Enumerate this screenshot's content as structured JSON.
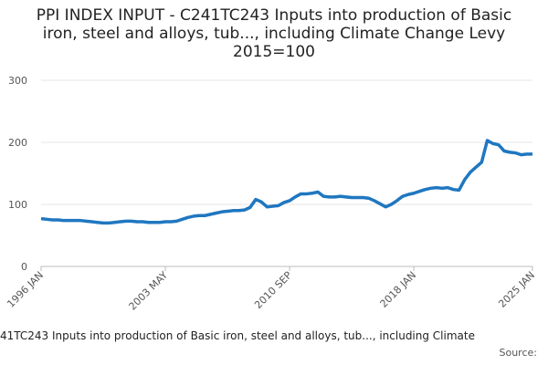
{
  "chart_data": {
    "type": "line",
    "title": "PPI INDEX INPUT - C241TC243 Inputs into production of Basic iron, steel and alloys, tub..., including Climate Change Levy 2015=100",
    "caption": "41TC243 Inputs into production of Basic iron, steel and alloys, tub..., including Climate",
    "source": "Source:",
    "x": [
      "1996 JAN",
      null,
      null,
      null,
      null,
      null,
      null,
      null,
      null,
      null,
      null,
      null,
      null,
      null,
      null,
      null,
      null,
      null,
      null,
      null,
      null,
      null,
      "2003 MAY",
      null,
      null,
      null,
      null,
      null,
      null,
      null,
      null,
      null,
      null,
      null,
      null,
      null,
      null,
      null,
      null,
      null,
      null,
      null,
      null,
      null,
      "2010 SEP",
      null,
      null,
      null,
      null,
      null,
      null,
      null,
      null,
      null,
      null,
      null,
      null,
      null,
      null,
      null,
      null,
      null,
      null,
      null,
      null,
      null,
      "2018 JAN",
      null,
      null,
      null,
      null,
      null,
      null,
      null,
      null,
      null,
      null,
      null,
      null,
      null,
      null,
      null,
      null,
      null,
      null,
      null,
      null,
      "2025 JAN"
    ],
    "series": [
      {
        "name": "C241TC243",
        "color": "#1f77c0",
        "values": [
          77,
          76,
          75,
          75,
          74,
          74,
          74,
          74,
          73,
          72,
          71,
          70,
          70,
          71,
          72,
          73,
          73,
          72,
          72,
          71,
          71,
          71,
          72,
          72,
          73,
          76,
          79,
          81,
          82,
          82,
          84,
          86,
          88,
          89,
          90,
          90,
          91,
          95,
          108,
          104,
          96,
          97,
          98,
          103,
          106,
          112,
          117,
          117,
          118,
          120,
          113,
          112,
          112,
          113,
          112,
          111,
          111,
          111,
          110,
          106,
          101,
          96,
          100,
          106,
          113,
          116,
          118,
          121,
          124,
          126,
          127,
          126,
          127,
          124,
          123,
          140,
          152,
          160,
          168,
          203,
          198,
          196,
          186,
          184,
          183,
          180,
          181,
          181
        ]
      }
    ],
    "ylim": [
      0,
      300
    ],
    "yticks": [
      0,
      100,
      200,
      300
    ],
    "grid": true
  }
}
